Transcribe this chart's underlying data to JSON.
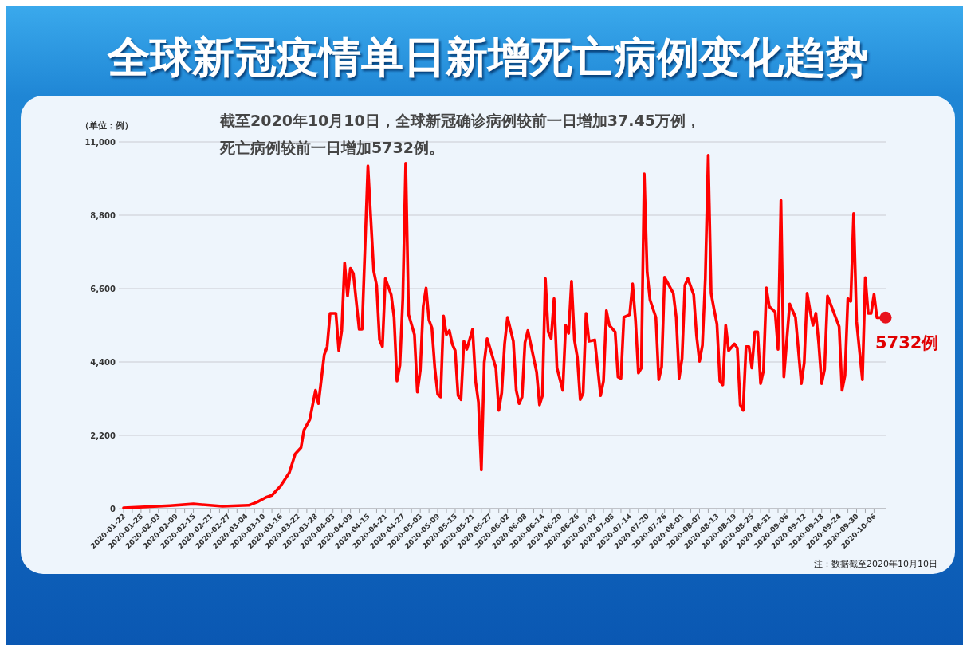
{
  "chart_data": {
    "type": "line",
    "title": "全球新冠疫情单日新增死亡病例变化趋势",
    "ylabel": "（单位：例）",
    "x": [
      "2020-01-22",
      "2020-02-07",
      "2020-02-15",
      "2020-02-25",
      "2020-03-05",
      "2020-03-08",
      "2020-03-11",
      "2020-03-13",
      "2020-03-16",
      "2020-03-19",
      "2020-03-21",
      "2020-03-23",
      "2020-03-24",
      "2020-03-26",
      "2020-03-28",
      "2020-03-29",
      "2020-03-31",
      "2020-04-01",
      "2020-04-02",
      "2020-04-04",
      "2020-04-05",
      "2020-04-06",
      "2020-04-07",
      "2020-04-08",
      "2020-04-09",
      "2020-04-10",
      "2020-04-12",
      "2020-04-13",
      "2020-04-15",
      "2020-04-17",
      "2020-04-18",
      "2020-04-19",
      "2020-04-20",
      "2020-04-21",
      "2020-04-23",
      "2020-04-24",
      "2020-04-25",
      "2020-04-26",
      "2020-04-27",
      "2020-04-28",
      "2020-04-29",
      "2020-05-01",
      "2020-05-02",
      "2020-05-03",
      "2020-05-04",
      "2020-05-05",
      "2020-05-06",
      "2020-05-07",
      "2020-05-08",
      "2020-05-09",
      "2020-05-10",
      "2020-05-11",
      "2020-05-12",
      "2020-05-13",
      "2020-05-14",
      "2020-05-15",
      "2020-05-16",
      "2020-05-17",
      "2020-05-18",
      "2020-05-19",
      "2020-05-21",
      "2020-05-22",
      "2020-05-23",
      "2020-05-24",
      "2020-05-25",
      "2020-05-26",
      "2020-05-29",
      "2020-05-30",
      "2020-05-31",
      "2020-06-01",
      "2020-06-02",
      "2020-06-04",
      "2020-06-05",
      "2020-06-06",
      "2020-06-07",
      "2020-06-08",
      "2020-06-09",
      "2020-06-12",
      "2020-06-13",
      "2020-06-14",
      "2020-06-15",
      "2020-06-16",
      "2020-06-17",
      "2020-06-18",
      "2020-06-19",
      "2020-06-21",
      "2020-06-22",
      "2020-06-23",
      "2020-06-24",
      "2020-06-25",
      "2020-06-26",
      "2020-06-27",
      "2020-06-28",
      "2020-06-29",
      "2020-06-30",
      "2020-07-02",
      "2020-07-04",
      "2020-07-05",
      "2020-07-06",
      "2020-07-07",
      "2020-07-09",
      "2020-07-10",
      "2020-07-11",
      "2020-07-12",
      "2020-07-14",
      "2020-07-15",
      "2020-07-16",
      "2020-07-17",
      "2020-07-18",
      "2020-07-19",
      "2020-07-20",
      "2020-07-21",
      "2020-07-23",
      "2020-07-24",
      "2020-07-25",
      "2020-07-26",
      "2020-07-29",
      "2020-07-30",
      "2020-07-31",
      "2020-08-01",
      "2020-08-02",
      "2020-08-03",
      "2020-08-05",
      "2020-08-06",
      "2020-08-07",
      "2020-08-08",
      "2020-08-09",
      "2020-08-10",
      "2020-08-11",
      "2020-08-12",
      "2020-08-13",
      "2020-08-14",
      "2020-08-15",
      "2020-08-16",
      "2020-08-17",
      "2020-08-19",
      "2020-08-20",
      "2020-08-21",
      "2020-08-22",
      "2020-08-23",
      "2020-08-24",
      "2020-08-25",
      "2020-08-26",
      "2020-08-27",
      "2020-08-28",
      "2020-08-29",
      "2020-08-30",
      "2020-08-31",
      "2020-09-02",
      "2020-09-03",
      "2020-09-04",
      "2020-09-05",
      "2020-09-07",
      "2020-09-09",
      "2020-09-11",
      "2020-09-12",
      "2020-09-13",
      "2020-09-14",
      "2020-09-15",
      "2020-09-16",
      "2020-09-17",
      "2020-09-18",
      "2020-09-19",
      "2020-09-20",
      "2020-09-24",
      "2020-09-25",
      "2020-09-26",
      "2020-09-27",
      "2020-09-28",
      "2020-09-29",
      "2020-09-30",
      "2020-10-02",
      "2020-10-03",
      "2020-10-04",
      "2020-10-05",
      "2020-10-06",
      "2020-10-07",
      "2020-10-10"
    ],
    "series": [
      {
        "color": "#ff0000",
        "values": [
          20,
          90,
          140,
          70,
          100,
          200,
          340,
          400,
          680,
          1080,
          1640,
          1830,
          2350,
          2670,
          3550,
          3150,
          4620,
          4860,
          5860,
          5860,
          4740,
          5340,
          7370,
          6380,
          7210,
          7050,
          5380,
          5380,
          10280,
          7130,
          6700,
          5060,
          4860,
          6900,
          6420,
          5740,
          3830,
          4300,
          6300,
          10360,
          5820,
          5220,
          3500,
          4140,
          6060,
          6620,
          5660,
          5420,
          4220,
          3430,
          3350,
          5780,
          5220,
          5340,
          4940,
          4740,
          3390,
          3270,
          5020,
          4780,
          5380,
          3830,
          3190,
          1160,
          4380,
          5100,
          4220,
          2950,
          3470,
          4940,
          5740,
          5020,
          3550,
          3150,
          3350,
          4980,
          5340,
          4100,
          3110,
          3390,
          6900,
          5300,
          5100,
          6300,
          4220,
          3550,
          5500,
          5260,
          6820,
          5060,
          4540,
          3270,
          3470,
          5860,
          5020,
          5060,
          3390,
          3830,
          5940,
          5500,
          5300,
          3950,
          3910,
          5740,
          5820,
          6740,
          5660,
          4070,
          4220,
          10040,
          7090,
          6260,
          5740,
          3870,
          4260,
          6940,
          6460,
          5740,
          3910,
          4500,
          6700,
          6900,
          6420,
          5180,
          4420,
          4900,
          6900,
          10600,
          6460,
          5980,
          5540,
          3830,
          3710,
          5500,
          4740,
          4940,
          4820,
          3110,
          2950,
          4860,
          4860,
          4220,
          5300,
          5300,
          3750,
          4140,
          6620,
          6060,
          5900,
          4780,
          9250,
          3950,
          6140,
          5740,
          3750,
          4380,
          6460,
          5940,
          5500,
          5860,
          4940,
          3750,
          4180,
          6380,
          5460,
          3550,
          3990,
          6300,
          6220,
          8850,
          5610,
          3870,
          6930,
          5860,
          5860,
          6430,
          5730,
          5732
        ]
      }
    ],
    "xlim": [
      "2020-01-22",
      "2020-10-10"
    ],
    "ylim": [
      0,
      11000
    ],
    "xticks": [
      "2020-01-22",
      {
        "value": "2020-01-25",
        "label": null
      },
      "2020-01-28",
      {
        "value": "2020-01-31",
        "label": null
      },
      "2020-02-03",
      {
        "value": "2020-02-06",
        "label": null
      },
      "2020-02-09",
      {
        "value": "2020-02-12",
        "label": null
      },
      "2020-02-15",
      {
        "value": "2020-02-18",
        "label": null
      },
      "2020-02-21",
      {
        "value": "2020-02-24",
        "label": null
      },
      "2020-02-27",
      {
        "value": "2020-03-01",
        "label": null
      },
      "2020-03-04",
      {
        "value": "2020-03-07",
        "label": null
      },
      "2020-03-10",
      {
        "value": "2020-03-13",
        "label": null
      },
      "2020-03-16",
      {
        "value": "2020-03-19",
        "label": null
      },
      "2020-03-22",
      {
        "value": "2020-03-25",
        "label": null
      },
      "2020-03-28",
      {
        "value": "2020-03-31",
        "label": null
      },
      "2020-04-03",
      {
        "value": "2020-04-06",
        "label": null
      },
      "2020-04-09",
      {
        "value": "2020-04-12",
        "label": null
      },
      "2020-04-15",
      {
        "value": "2020-04-18",
        "label": null
      },
      "2020-04-21",
      {
        "value": "2020-04-24",
        "label": null
      },
      "2020-04-27",
      {
        "value": "2020-04-30",
        "label": null
      },
      "2020-05-03",
      {
        "value": "2020-05-06",
        "label": null
      },
      "2020-05-09",
      {
        "value": "2020-05-12",
        "label": null
      },
      "2020-05-15",
      {
        "value": "2020-05-18",
        "label": null
      },
      "2020-05-21",
      {
        "value": "2020-05-24",
        "label": null
      },
      "2020-05-27",
      {
        "value": "2020-05-30",
        "label": null
      },
      "2020-06-02",
      {
        "value": "2020-06-05",
        "label": null
      },
      "2020-06-08",
      {
        "value": "2020-06-11",
        "label": null
      },
      "2020-06-14",
      {
        "value": "2020-06-17",
        "label": null
      },
      "2020-06-20",
      {
        "value": "2020-06-23",
        "label": null
      },
      "2020-06-26",
      {
        "value": "2020-06-29",
        "label": null
      },
      "2020-07-02",
      {
        "value": "2020-07-05",
        "label": null
      },
      "2020-07-08",
      {
        "value": "2020-07-11",
        "label": null
      },
      "2020-07-14",
      {
        "value": "2020-07-17",
        "label": null
      },
      "2020-07-20",
      {
        "value": "2020-07-23",
        "label": null
      },
      "2020-07-26",
      {
        "value": "2020-07-29",
        "label": null
      },
      "2020-08-01",
      {
        "value": "2020-08-04",
        "label": null
      },
      "2020-08-07",
      {
        "value": "2020-08-10",
        "label": null
      },
      "2020-08-13",
      {
        "value": "2020-08-16",
        "label": null
      },
      "2020-08-19",
      {
        "value": "2020-08-22",
        "label": null
      },
      "2020-08-25",
      {
        "value": "2020-08-28",
        "label": null
      },
      "2020-08-31",
      {
        "value": "2020-09-03",
        "label": null
      },
      "2020-09-06",
      {
        "value": "2020-09-09",
        "label": null
      },
      "2020-09-12",
      {
        "value": "2020-09-15",
        "label": null
      },
      "2020-09-18",
      {
        "value": "2020-09-21",
        "label": null
      },
      "2020-09-24",
      {
        "value": "2020-09-27",
        "label": null
      },
      "2020-09-30",
      {
        "value": "2020-10-03",
        "label": null
      },
      "2020-10-06"
    ],
    "yticks": [
      0,
      {
        "value": 2200,
        "label": "2,200"
      },
      {
        "value": 4400,
        "label": "4,400"
      },
      {
        "value": 6600,
        "label": "6,600"
      },
      {
        "value": 8800,
        "label": "8,800"
      },
      {
        "value": 11000,
        "label": "11,000"
      }
    ],
    "grid": "y",
    "annotations": [
      "截至2020年10月10日，全球新冠确诊病例较前一日增加37.45万例，死亡病例较前一日增加5732例。",
      {
        "text": "5732例",
        "x": "2020-10-10",
        "y": 5732
      },
      "注：数据截至2020年10月10日"
    ]
  }
}
